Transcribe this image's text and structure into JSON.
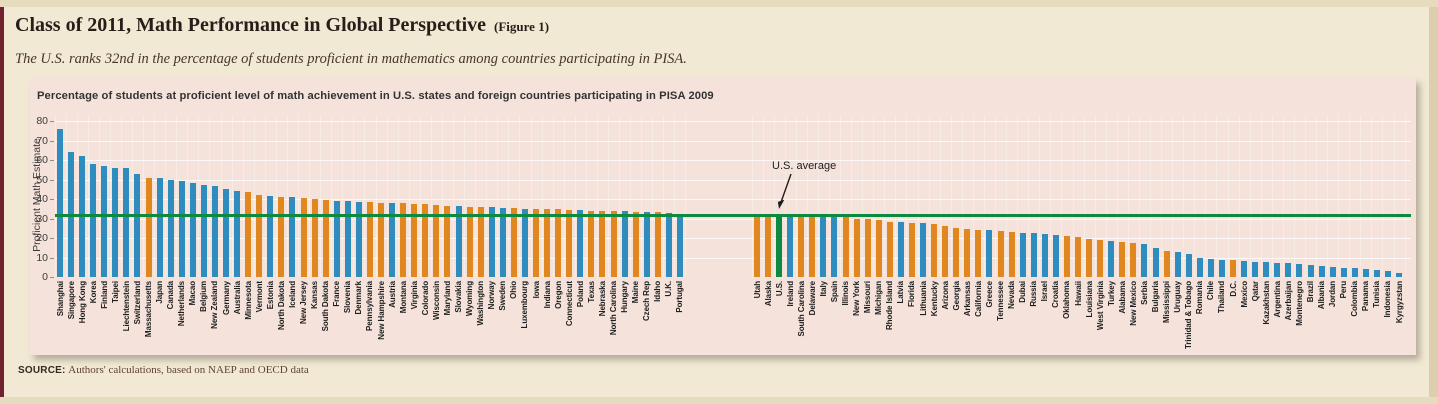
{
  "page": {
    "title": "Class of 2011, Math Performance in Global Perspective",
    "figure_tag": "(Figure 1)",
    "subtitle": "The U.S. ranks 32nd in the percentage of students proficient in mathematics among countries participating in PISA.",
    "source_label": "SOURCE:",
    "source_text": "Authors' calculations, based on NAEP and OECD data"
  },
  "chart_data": {
    "type": "bar",
    "title": "Percentage of students at proficient level of math achievement in U.S. states and foreign countries participating in PISA 2009",
    "ylabel": "Proficient Math Estimate",
    "ylim": [
      0,
      80
    ],
    "yticks": [
      0,
      10,
      20,
      30,
      40,
      50,
      60,
      70,
      80
    ],
    "grid": "horizontal-white",
    "legend_position": "none",
    "annotation": {
      "label": "U.S. average",
      "value": 32
    },
    "colors": {
      "country": "#2e8cbf",
      "state": "#e0871f",
      "us": "#0e8a40"
    },
    "left_panel": [
      {
        "label": "Shanghai",
        "value": 76,
        "group": "country"
      },
      {
        "label": "Singapore",
        "value": 64,
        "group": "country"
      },
      {
        "label": "Hong Kong",
        "value": 62,
        "group": "country"
      },
      {
        "label": "Korea",
        "value": 58,
        "group": "country"
      },
      {
        "label": "Finland",
        "value": 57,
        "group": "country"
      },
      {
        "label": "Taipei",
        "value": 56,
        "group": "country"
      },
      {
        "label": "Liechtenstein",
        "value": 56,
        "group": "country"
      },
      {
        "label": "Switzerland",
        "value": 53,
        "group": "country"
      },
      {
        "label": "Massachusetts",
        "value": 51,
        "group": "state"
      },
      {
        "label": "Japan",
        "value": 51,
        "group": "country"
      },
      {
        "label": "Canada",
        "value": 50,
        "group": "country"
      },
      {
        "label": "Netherlands",
        "value": 49,
        "group": "country"
      },
      {
        "label": "Macao",
        "value": 48,
        "group": "country"
      },
      {
        "label": "Belgium",
        "value": 47,
        "group": "country"
      },
      {
        "label": "New Zealand",
        "value": 46.5,
        "group": "country"
      },
      {
        "label": "Germany",
        "value": 45,
        "group": "country"
      },
      {
        "label": "Australia",
        "value": 44,
        "group": "country"
      },
      {
        "label": "Minnesota",
        "value": 43.5,
        "group": "state"
      },
      {
        "label": "Vermont",
        "value": 42,
        "group": "state"
      },
      {
        "label": "Estonia",
        "value": 41.5,
        "group": "country"
      },
      {
        "label": "North Dakota",
        "value": 41,
        "group": "state"
      },
      {
        "label": "Iceland",
        "value": 41,
        "group": "country"
      },
      {
        "label": "New Jersey",
        "value": 40.5,
        "group": "state"
      },
      {
        "label": "Kansas",
        "value": 40,
        "group": "state"
      },
      {
        "label": "South Dakota",
        "value": 39.5,
        "group": "state"
      },
      {
        "label": "France",
        "value": 39,
        "group": "country"
      },
      {
        "label": "Slovenia",
        "value": 39,
        "group": "country"
      },
      {
        "label": "Denmark",
        "value": 38.5,
        "group": "country"
      },
      {
        "label": "Pennsylvania",
        "value": 38.5,
        "group": "state"
      },
      {
        "label": "New Hampshire",
        "value": 38,
        "group": "state"
      },
      {
        "label": "Austria",
        "value": 38,
        "group": "country"
      },
      {
        "label": "Montana",
        "value": 38,
        "group": "state"
      },
      {
        "label": "Virginia",
        "value": 37.5,
        "group": "state"
      },
      {
        "label": "Colorado",
        "value": 37.5,
        "group": "state"
      },
      {
        "label": "Wisconsin",
        "value": 37,
        "group": "state"
      },
      {
        "label": "Maryland",
        "value": 36.5,
        "group": "state"
      },
      {
        "label": "Slovakia",
        "value": 36.5,
        "group": "country"
      },
      {
        "label": "Wyoming",
        "value": 36,
        "group": "state"
      },
      {
        "label": "Washington",
        "value": 36,
        "group": "state"
      },
      {
        "label": "Norway",
        "value": 36,
        "group": "country"
      },
      {
        "label": "Sweden",
        "value": 35.5,
        "group": "country"
      },
      {
        "label": "Ohio",
        "value": 35.5,
        "group": "state"
      },
      {
        "label": "Luxembourg",
        "value": 35,
        "group": "country"
      },
      {
        "label": "Iowa",
        "value": 35,
        "group": "state"
      },
      {
        "label": "Indiana",
        "value": 35,
        "group": "state"
      },
      {
        "label": "Oregon",
        "value": 35,
        "group": "state"
      },
      {
        "label": "Connecticut",
        "value": 34.5,
        "group": "state"
      },
      {
        "label": "Poland",
        "value": 34.5,
        "group": "country"
      },
      {
        "label": "Texas",
        "value": 34,
        "group": "state"
      },
      {
        "label": "Nebraska",
        "value": 34,
        "group": "state"
      },
      {
        "label": "North Carolina",
        "value": 34,
        "group": "state"
      },
      {
        "label": "Hungary",
        "value": 34,
        "group": "country"
      },
      {
        "label": "Maine",
        "value": 33.5,
        "group": "state"
      },
      {
        "label": "Czech Rep",
        "value": 33.5,
        "group": "country"
      },
      {
        "label": "Idaho",
        "value": 33.5,
        "group": "state"
      },
      {
        "label": "U.K.",
        "value": 33,
        "group": "country"
      },
      {
        "label": "Portugal",
        "value": 32.5,
        "group": "country"
      }
    ],
    "right_panel": [
      {
        "label": "Utah",
        "value": 32.5,
        "group": "state"
      },
      {
        "label": "Alaska",
        "value": 32,
        "group": "state"
      },
      {
        "label": "U.S.",
        "value": 32,
        "group": "us"
      },
      {
        "label": "Ireland",
        "value": 32,
        "group": "country"
      },
      {
        "label": "South Carolina",
        "value": 31.5,
        "group": "state"
      },
      {
        "label": "Delaware",
        "value": 31.5,
        "group": "state"
      },
      {
        "label": "Italy",
        "value": 31.5,
        "group": "country"
      },
      {
        "label": "Spain",
        "value": 31,
        "group": "country"
      },
      {
        "label": "Illinois",
        "value": 31,
        "group": "state"
      },
      {
        "label": "New York",
        "value": 30,
        "group": "state"
      },
      {
        "label": "Missouri",
        "value": 29.5,
        "group": "state"
      },
      {
        "label": "Michigan",
        "value": 29,
        "group": "state"
      },
      {
        "label": "Rhode Island",
        "value": 28,
        "group": "state"
      },
      {
        "label": "Latvia",
        "value": 28,
        "group": "country"
      },
      {
        "label": "Florida",
        "value": 27.5,
        "group": "state"
      },
      {
        "label": "Lithuania",
        "value": 27.5,
        "group": "country"
      },
      {
        "label": "Kentucky",
        "value": 27,
        "group": "state"
      },
      {
        "label": "Arizona",
        "value": 26,
        "group": "state"
      },
      {
        "label": "Georgia",
        "value": 25,
        "group": "state"
      },
      {
        "label": "Arkansas",
        "value": 24.5,
        "group": "state"
      },
      {
        "label": "California",
        "value": 24,
        "group": "state"
      },
      {
        "label": "Greece",
        "value": 24,
        "group": "country"
      },
      {
        "label": "Tennessee",
        "value": 23.5,
        "group": "state"
      },
      {
        "label": "Nevada",
        "value": 23,
        "group": "state"
      },
      {
        "label": "Dubai",
        "value": 22.5,
        "group": "country"
      },
      {
        "label": "Russia",
        "value": 22.5,
        "group": "country"
      },
      {
        "label": "Israel",
        "value": 22,
        "group": "country"
      },
      {
        "label": "Croatia",
        "value": 21.5,
        "group": "country"
      },
      {
        "label": "Oklahoma",
        "value": 21,
        "group": "state"
      },
      {
        "label": "Hawaii",
        "value": 20.5,
        "group": "state"
      },
      {
        "label": "Louisiana",
        "value": 19.5,
        "group": "state"
      },
      {
        "label": "West Virginia",
        "value": 19,
        "group": "state"
      },
      {
        "label": "Turkey",
        "value": 18.5,
        "group": "country"
      },
      {
        "label": "Alabama",
        "value": 18,
        "group": "state"
      },
      {
        "label": "New Mexico",
        "value": 17.5,
        "group": "state"
      },
      {
        "label": "Serbia",
        "value": 17,
        "group": "country"
      },
      {
        "label": "Bulgaria",
        "value": 15,
        "group": "country"
      },
      {
        "label": "Mississippi",
        "value": 13.5,
        "group": "state"
      },
      {
        "label": "Uruguay",
        "value": 13,
        "group": "country"
      },
      {
        "label": "Trinidad & Tobago",
        "value": 12,
        "group": "country"
      },
      {
        "label": "Romania",
        "value": 10,
        "group": "country"
      },
      {
        "label": "Chile",
        "value": 9,
        "group": "country"
      },
      {
        "label": "Thailand",
        "value": 8.5,
        "group": "country"
      },
      {
        "label": "D.C.",
        "value": 8.5,
        "group": "state"
      },
      {
        "label": "Mexico",
        "value": 8,
        "group": "country"
      },
      {
        "label": "Qatar",
        "value": 7.5,
        "group": "country"
      },
      {
        "label": "Kazakhstan",
        "value": 7.5,
        "group": "country"
      },
      {
        "label": "Argentina",
        "value": 7,
        "group": "country"
      },
      {
        "label": "Azerbaijan",
        "value": 7,
        "group": "country"
      },
      {
        "label": "Montenegro",
        "value": 6.5,
        "group": "country"
      },
      {
        "label": "Brazil",
        "value": 6,
        "group": "country"
      },
      {
        "label": "Albania",
        "value": 5.5,
        "group": "country"
      },
      {
        "label": "Jordan",
        "value": 5,
        "group": "country"
      },
      {
        "label": "Peru",
        "value": 4.5,
        "group": "country"
      },
      {
        "label": "Colombia",
        "value": 4.5,
        "group": "country"
      },
      {
        "label": "Panama",
        "value": 4,
        "group": "country"
      },
      {
        "label": "Tunisia",
        "value": 3.5,
        "group": "country"
      },
      {
        "label": "Indonesia",
        "value": 3,
        "group": "country"
      },
      {
        "label": "Kyrgyzstan",
        "value": 2,
        "group": "country"
      }
    ]
  }
}
